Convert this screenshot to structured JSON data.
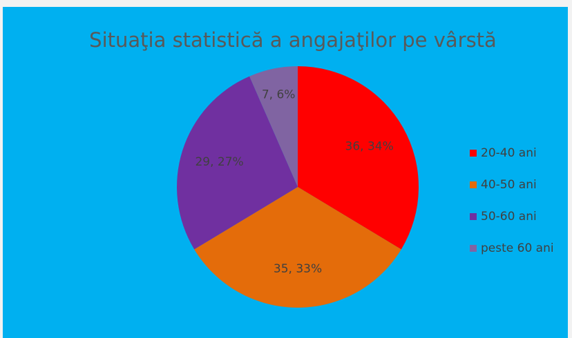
{
  "chart_data": {
    "type": "pie",
    "title": "Situaţia statistică a angajaţilor pe vârstă",
    "categories": [
      "20-40 ani",
      "40-50 ani",
      "50-60 ani",
      "peste 60 ani"
    ],
    "values": [
      36,
      35,
      29,
      7
    ],
    "value_labels": [
      "36, 34%",
      "35, 33%",
      "29, 27%",
      "7, 6%"
    ],
    "colors": [
      "#ff0000",
      "#e46c0a",
      "#7030a0",
      "#8064a2"
    ],
    "legend": "right"
  }
}
